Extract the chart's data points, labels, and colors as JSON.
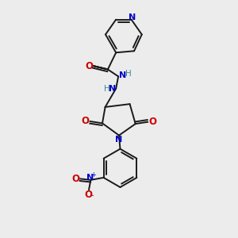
{
  "bg_color": "#ececec",
  "bond_color": "#1a1a1a",
  "N_color": "#0000cc",
  "O_color": "#cc0000",
  "H_color": "#3a8a8a",
  "figsize": [
    3.0,
    3.0
  ],
  "dpi": 100,
  "xlim": [
    0,
    10
  ],
  "ylim": [
    0,
    10
  ]
}
